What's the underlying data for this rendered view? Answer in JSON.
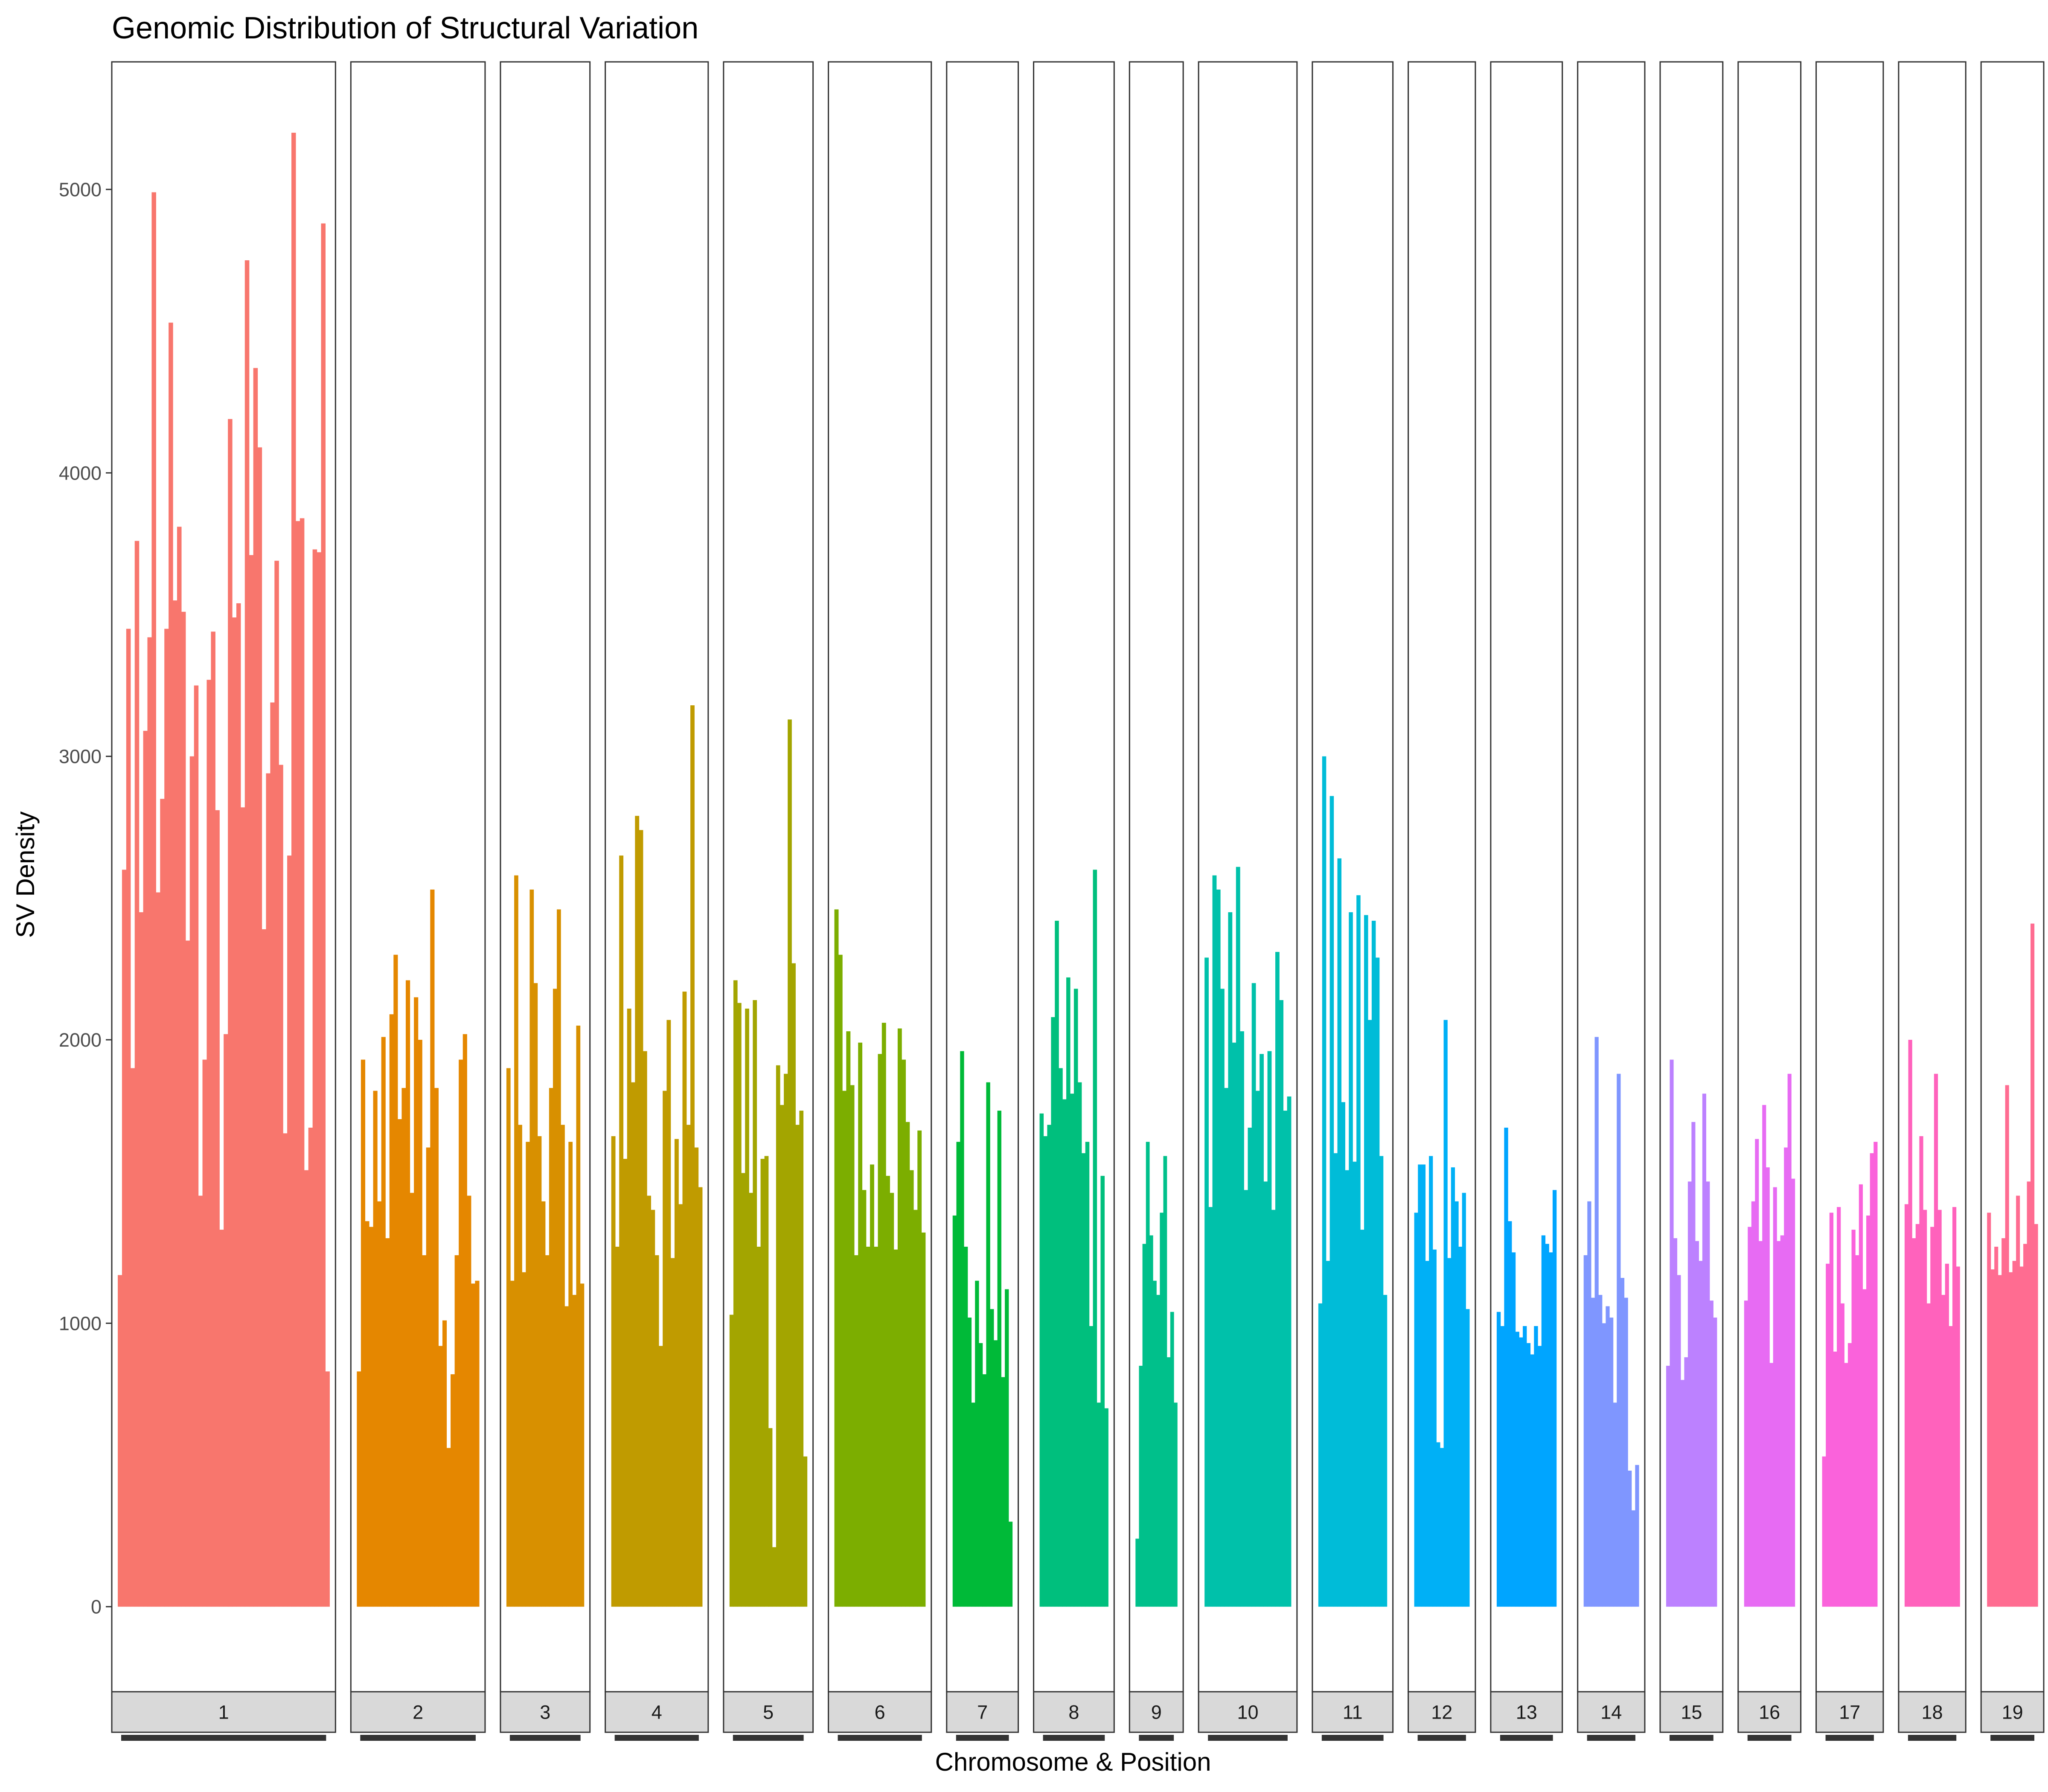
{
  "chart_data": {
    "type": "bar",
    "title": "Genomic Distribution of Structural Variation",
    "xlabel": "Chromosome & Position",
    "ylabel": "SV Density",
    "ylim": [
      -300,
      5450
    ],
    "yticks": [
      0,
      1000,
      2000,
      3000,
      4000,
      5000
    ],
    "grid": false,
    "legend": "none",
    "facets": [
      {
        "chromosome": "1",
        "color": "#F8766D",
        "values": [
          1170,
          2600,
          3450,
          1900,
          3760,
          2450,
          3090,
          3420,
          4990,
          2520,
          2850,
          3450,
          4530,
          3550,
          3810,
          3510,
          2350,
          3000,
          3250,
          1450,
          1930,
          3270,
          3440,
          2810,
          1330,
          2020,
          4190,
          3490,
          3540,
          2820,
          4750,
          3710,
          4370,
          4090,
          2390,
          2940,
          3190,
          3690,
          2970,
          1670,
          2650,
          5200,
          3830,
          3840,
          1540,
          1690,
          3730,
          3720,
          4880,
          830
        ]
      },
      {
        "chromosome": "2",
        "color": "#E58700",
        "values": [
          830,
          1930,
          1360,
          1340,
          1820,
          1430,
          2010,
          1300,
          2090,
          2300,
          1720,
          1830,
          2210,
          1460,
          2150,
          2000,
          1240,
          1620,
          2530,
          1830,
          920,
          1010,
          560,
          820,
          1240,
          1930,
          2020,
          1450,
          1140,
          1150
        ]
      },
      {
        "chromosome": "3",
        "color": "#D89000",
        "values": [
          1900,
          1150,
          2580,
          1700,
          1180,
          1640,
          2530,
          2200,
          1660,
          1430,
          1240,
          1830,
          2180,
          2460,
          1700,
          1060,
          1640,
          1100,
          2050,
          1140
        ]
      },
      {
        "chromosome": "4",
        "color": "#C09B00",
        "values": [
          1660,
          1270,
          2650,
          1580,
          2110,
          1850,
          2790,
          2740,
          1960,
          1450,
          1400,
          1240,
          920,
          1820,
          2070,
          1230,
          1650,
          1420,
          2170,
          1700,
          3180,
          1620,
          1480
        ]
      },
      {
        "chromosome": "5",
        "color": "#A3A500",
        "values": [
          1030,
          2210,
          2130,
          1530,
          2110,
          1460,
          2140,
          1270,
          1580,
          1590,
          630,
          210,
          1910,
          1770,
          1880,
          3130,
          2270,
          1700,
          1750,
          530
        ]
      },
      {
        "chromosome": "6",
        "color": "#7CAE00",
        "values": [
          2460,
          2300,
          1820,
          2030,
          1840,
          1240,
          1990,
          1470,
          1270,
          1560,
          1270,
          1950,
          2060,
          1520,
          1460,
          1260,
          2040,
          1930,
          1710,
          1540,
          1400,
          1680,
          1320
        ]
      },
      {
        "chromosome": "7",
        "color": "#00BA38",
        "values": [
          1380,
          1640,
          1960,
          1270,
          1020,
          720,
          1150,
          930,
          820,
          1850,
          1050,
          940,
          1750,
          810,
          1120,
          300
        ]
      },
      {
        "chromosome": "8",
        "color": "#00BF7D",
        "values": [
          1740,
          1660,
          1700,
          2080,
          2420,
          1900,
          1790,
          2220,
          1810,
          2180,
          1850,
          1600,
          1640,
          990,
          2600,
          720,
          1520,
          700
        ]
      },
      {
        "chromosome": "9",
        "color": "#00C08B",
        "values": [
          240,
          850,
          1280,
          1640,
          1310,
          1150,
          1100,
          1390,
          1590,
          880,
          1040,
          720
        ]
      },
      {
        "chromosome": "10",
        "color": "#00C1AA",
        "values": [
          2290,
          1410,
          2580,
          2530,
          2180,
          1830,
          2450,
          1990,
          2610,
          2030,
          1470,
          1690,
          2200,
          1820,
          1950,
          1500,
          1960,
          1400,
          2310,
          2140,
          1750,
          1800
        ]
      },
      {
        "chromosome": "11",
        "color": "#00BCD8",
        "values": [
          1070,
          3000,
          1220,
          2860,
          1600,
          2640,
          1780,
          1540,
          2450,
          1570,
          2510,
          1330,
          2440,
          2070,
          2420,
          2290,
          1590,
          1100
        ]
      },
      {
        "chromosome": "12",
        "color": "#00B0F6",
        "values": [
          1390,
          1560,
          1560,
          1220,
          1590,
          1260,
          580,
          560,
          2070,
          1230,
          1550,
          1430,
          1270,
          1460,
          1050
        ]
      },
      {
        "chromosome": "13",
        "color": "#00A5FF",
        "values": [
          1040,
          990,
          1690,
          1360,
          1250,
          970,
          950,
          990,
          930,
          890,
          990,
          920,
          1310,
          1280,
          1250,
          1470
        ]
      },
      {
        "chromosome": "14",
        "color": "#7F96FF",
        "values": [
          1240,
          1430,
          1090,
          2010,
          1100,
          1000,
          1060,
          1020,
          720,
          1880,
          1160,
          1090,
          480,
          340,
          500
        ]
      },
      {
        "chromosome": "15",
        "color": "#BC81FF",
        "values": [
          850,
          1930,
          1300,
          1170,
          800,
          880,
          1500,
          1710,
          1290,
          1220,
          1810,
          1500,
          1080,
          1020
        ]
      },
      {
        "chromosome": "16",
        "color": "#E76BF3",
        "values": [
          1080,
          1340,
          1430,
          1650,
          1290,
          1770,
          1550,
          860,
          1480,
          1290,
          1310,
          1620,
          1880,
          1510
        ]
      },
      {
        "chromosome": "17",
        "color": "#FA62DB",
        "values": [
          530,
          1210,
          1390,
          900,
          1410,
          1070,
          860,
          930,
          1330,
          1240,
          1490,
          1120,
          1380,
          1600,
          1640
        ]
      },
      {
        "chromosome": "18",
        "color": "#FF62BC",
        "values": [
          1420,
          2000,
          1300,
          1350,
          1660,
          1400,
          1070,
          1340,
          1880,
          1400,
          1100,
          1210,
          990,
          1410,
          1200
        ]
      },
      {
        "chromosome": "19",
        "color": "#FF6C91",
        "values": [
          1390,
          1190,
          1270,
          1170,
          1300,
          1840,
          1180,
          1220,
          1450,
          1200,
          1280,
          1500,
          2410,
          1350
        ]
      }
    ]
  }
}
